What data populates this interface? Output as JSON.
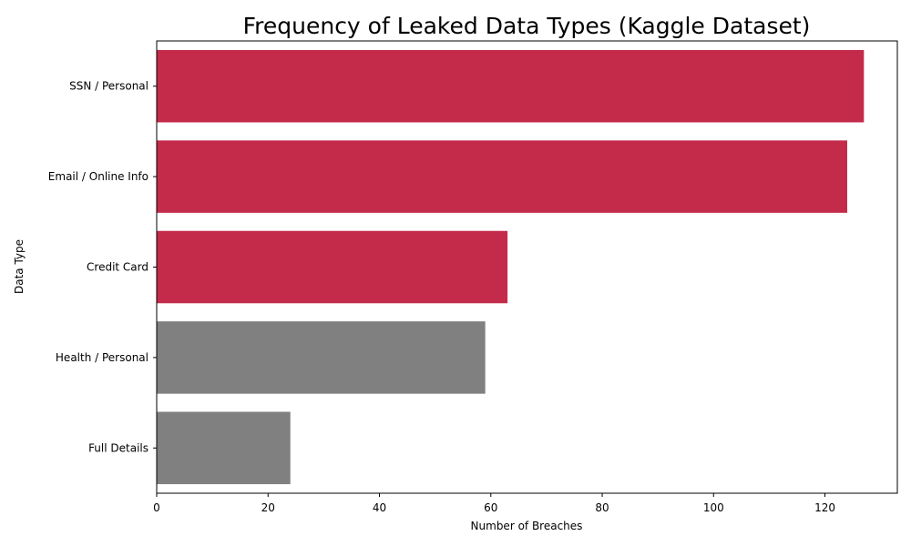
{
  "chart_data": {
    "type": "bar",
    "orientation": "horizontal",
    "title": "Frequency of Leaked Data Types (Kaggle Dataset)",
    "xlabel": "Number of Breaches",
    "ylabel": "Data Type",
    "categories": [
      "SSN / Personal",
      "Email / Online Info",
      "Credit Card",
      "Health / Personal",
      "Full Details"
    ],
    "values": [
      127,
      124,
      63,
      59,
      24
    ],
    "bar_colors": [
      "#c42b4b",
      "#c42b4b",
      "#c42b4b",
      "#808080",
      "#808080"
    ],
    "xlim": [
      0,
      133
    ],
    "x_ticks": [
      0,
      20,
      40,
      60,
      80,
      100,
      120
    ],
    "grid": false,
    "legend": "none"
  }
}
